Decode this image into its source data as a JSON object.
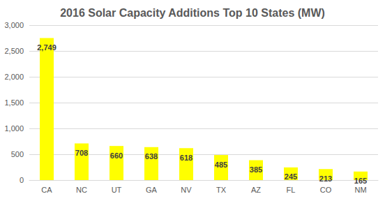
{
  "chart_data": {
    "type": "bar",
    "title": "2016 Solar Capacity Additions Top 10 States (MW)",
    "categories": [
      "CA",
      "NC",
      "UT",
      "GA",
      "NV",
      "TX",
      "AZ",
      "FL",
      "CO",
      "NM"
    ],
    "values": [
      2749,
      708,
      660,
      638,
      618,
      485,
      385,
      245,
      213,
      165
    ],
    "value_labels": [
      "2,749",
      "708",
      "660",
      "638",
      "618",
      "485",
      "385",
      "245",
      "213",
      "165"
    ],
    "color": "#ffff00",
    "ylim": [
      0,
      3000
    ],
    "yticks": [
      0,
      500,
      {
        "value": 1000,
        "label": "1,000"
      },
      {
        "value": 1500,
        "label": "1,500"
      },
      {
        "value": 2000,
        "label": "2,000"
      },
      {
        "value": 2500,
        "label": "2,500"
      },
      {
        "value": 3000,
        "label": "3,000"
      }
    ],
    "grid": true,
    "data_labels": true
  }
}
